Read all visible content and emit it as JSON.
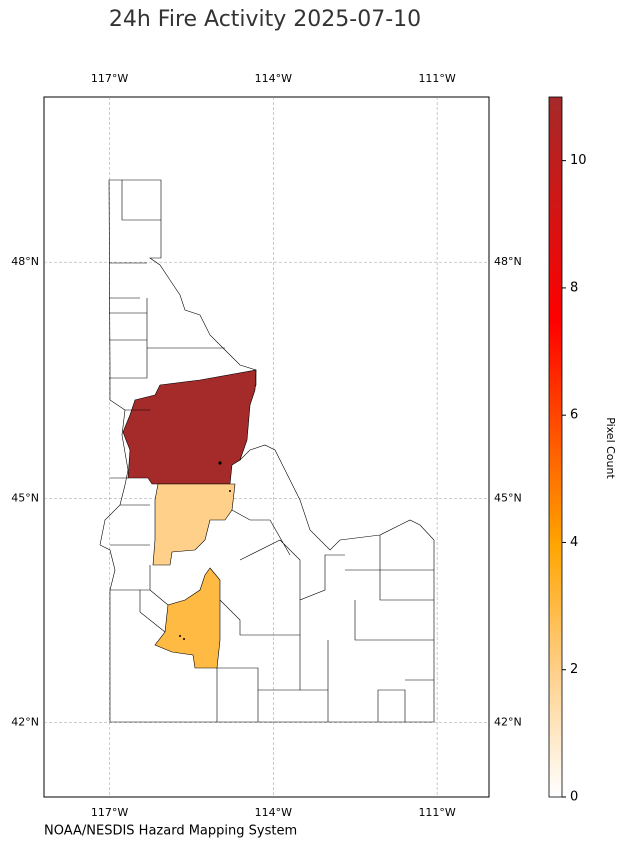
{
  "title": "24h Fire Activity 2025-07-10",
  "credit": "NOAA/NESDIS Hazard Mapping System",
  "map": {
    "xlim": [
      -118.2,
      -110.05
    ],
    "ylim": [
      40.97,
      50.0
    ],
    "xticks": [
      {
        "value": -117,
        "label": "117°W"
      },
      {
        "value": -114,
        "label": "114°W"
      },
      {
        "value": -111,
        "label": "111°W"
      }
    ],
    "yticks": [
      {
        "value": 42,
        "label": "42°N"
      },
      {
        "value": 45,
        "label": "45°N"
      },
      {
        "value": 48,
        "label": "48°N"
      }
    ],
    "grid": true,
    "regions": [
      {
        "value": 11
      },
      {
        "value": 2
      },
      {
        "value": 3
      }
    ]
  },
  "colorbar": {
    "label": "Pixel Count",
    "lim": [
      0,
      11
    ],
    "ticks": [
      0,
      2,
      4,
      6,
      8,
      10
    ]
  }
}
